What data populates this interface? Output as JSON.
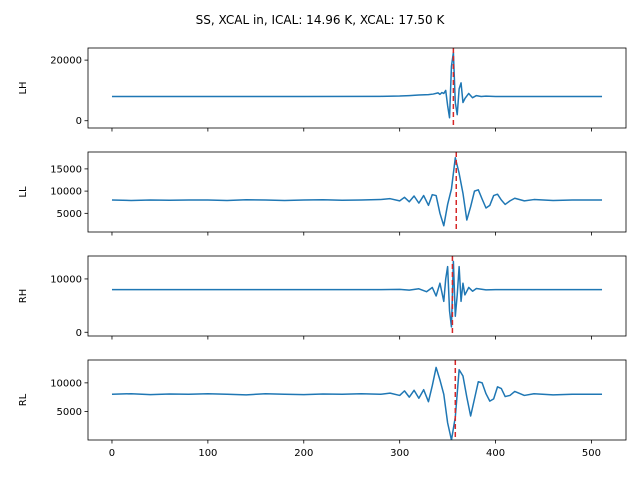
{
  "figure": {
    "title": "SS, XCAL in, ICAL: 14.96 K, XCAL: 17.50 K"
  },
  "colors": {
    "series": "#1f77b4",
    "marker_line": "#d62728",
    "axes": "#000000",
    "background": "#ffffff"
  },
  "chart_data": [
    {
      "type": "line",
      "ylabel": "LH",
      "xlim": [
        -25,
        536
      ],
      "ylim": [
        -2400,
        24000
      ],
      "yticks": [
        0,
        20000
      ],
      "ytick_labels": [
        "0",
        "20000"
      ],
      "xticks": [
        0,
        100,
        200,
        300,
        400,
        500
      ],
      "xtick_labels": [
        "",
        "",
        "",
        "",
        "",
        ""
      ],
      "baseline": 8000,
      "marker_x": 356,
      "series": [
        {
          "x": [
            0,
            100,
            200,
            280,
            300,
            310,
            320,
            330,
            335,
            340,
            342,
            344,
            346,
            348,
            350,
            352,
            354,
            356,
            358,
            360,
            362,
            364,
            366,
            368,
            372,
            376,
            380,
            385,
            390,
            400,
            420,
            450,
            511
          ],
          "values": [
            8000,
            8000,
            8000,
            8050,
            8150,
            8300,
            8500,
            8600,
            8800,
            9200,
            8700,
            9300,
            9000,
            10000,
            5000,
            1000,
            18000,
            22500,
            6000,
            2000,
            10500,
            12500,
            6000,
            7300,
            9000,
            7600,
            8300,
            8000,
            8100,
            8000,
            8000,
            8000,
            8000
          ]
        }
      ]
    },
    {
      "type": "line",
      "ylabel": "LL",
      "xlim": [
        -25,
        536
      ],
      "ylim": [
        800,
        18800
      ],
      "yticks": [
        5000,
        10000,
        15000
      ],
      "ytick_labels": [
        "5000",
        "10000",
        "15000"
      ],
      "xticks": [
        0,
        100,
        200,
        300,
        400,
        500
      ],
      "xtick_labels": [
        "",
        "",
        "",
        "",
        "",
        ""
      ],
      "baseline": 8000,
      "marker_x": 359,
      "series": [
        {
          "x": [
            0,
            20,
            40,
            60,
            80,
            100,
            120,
            140,
            160,
            180,
            200,
            220,
            240,
            260,
            280,
            290,
            300,
            305,
            310,
            315,
            320,
            325,
            330,
            334,
            338,
            342,
            346,
            350,
            354,
            358,
            362,
            366,
            370,
            374,
            378,
            382,
            386,
            390,
            394,
            398,
            402,
            406,
            410,
            415,
            420,
            430,
            440,
            460,
            480,
            511
          ],
          "values": [
            8000,
            7900,
            8000,
            7950,
            8000,
            8000,
            7900,
            8050,
            8000,
            7900,
            8000,
            8050,
            7950,
            8000,
            8100,
            8300,
            7800,
            8600,
            7600,
            8900,
            7300,
            9000,
            6800,
            9200,
            9000,
            5000,
            2200,
            7000,
            10500,
            17500,
            14000,
            9500,
            3500,
            6500,
            10000,
            10300,
            8200,
            6200,
            6800,
            9000,
            9300,
            8000,
            7000,
            7800,
            8400,
            7800,
            8100,
            7900,
            8000,
            8000
          ]
        }
      ]
    },
    {
      "type": "line",
      "ylabel": "RH",
      "xlim": [
        -25,
        536
      ],
      "ylim": [
        -700,
        14300
      ],
      "yticks": [
        0,
        10000
      ],
      "ytick_labels": [
        "0",
        "10000"
      ],
      "xticks": [
        0,
        100,
        200,
        300,
        400,
        500
      ],
      "xtick_labels": [
        "",
        "",
        "",
        "",
        "",
        ""
      ],
      "baseline": 8000,
      "marker_x": 355,
      "series": [
        {
          "x": [
            0,
            100,
            200,
            280,
            300,
            310,
            320,
            328,
            334,
            338,
            342,
            346,
            348,
            350,
            352,
            354,
            356,
            358,
            360,
            362,
            364,
            366,
            368,
            372,
            376,
            380,
            390,
            400,
            450,
            511
          ],
          "values": [
            8000,
            8000,
            8000,
            8000,
            8050,
            7900,
            8150,
            7600,
            8400,
            6800,
            9200,
            5800,
            10000,
            12300,
            4000,
            1000,
            13300,
            3000,
            7000,
            12300,
            5800,
            9200,
            7000,
            8400,
            7700,
            8200,
            7950,
            8000,
            8000,
            8000
          ]
        }
      ]
    },
    {
      "type": "line",
      "ylabel": "RL",
      "xlim": [
        -25,
        536
      ],
      "ylim": [
        0,
        14000
      ],
      "yticks": [
        5000,
        10000
      ],
      "ytick_labels": [
        "5000",
        "10000"
      ],
      "xticks": [
        0,
        100,
        200,
        300,
        400,
        500
      ],
      "xtick_labels": [
        "0",
        "100",
        "200",
        "300",
        "400",
        "500"
      ],
      "baseline": 8000,
      "marker_x": 358,
      "series": [
        {
          "x": [
            0,
            20,
            40,
            60,
            80,
            100,
            120,
            140,
            160,
            180,
            200,
            220,
            240,
            260,
            280,
            290,
            300,
            305,
            310,
            315,
            320,
            325,
            330,
            334,
            338,
            342,
            346,
            350,
            354,
            358,
            362,
            366,
            370,
            374,
            378,
            382,
            386,
            390,
            394,
            398,
            402,
            406,
            410,
            415,
            420,
            430,
            440,
            460,
            480,
            511
          ],
          "values": [
            8000,
            8100,
            7950,
            8050,
            8000,
            8100,
            8000,
            7900,
            8100,
            8000,
            7950,
            8050,
            8000,
            8100,
            8000,
            8200,
            7800,
            8600,
            7500,
            8700,
            7300,
            8800,
            6700,
            9500,
            12700,
            10500,
            8000,
            3000,
            0,
            4000,
            12300,
            11200,
            7500,
            4200,
            7200,
            10200,
            10000,
            8100,
            6800,
            7200,
            9300,
            9000,
            7600,
            7800,
            8500,
            7800,
            8100,
            7900,
            8000,
            8000
          ]
        }
      ]
    }
  ]
}
